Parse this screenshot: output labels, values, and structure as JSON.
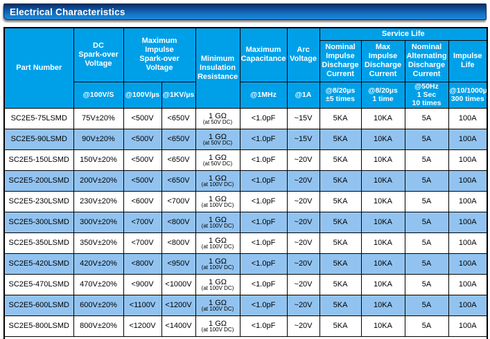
{
  "title": "Electrical Characteristics",
  "table": {
    "header": {
      "part_number": "Part Number",
      "dc_spark": "DC\nSpark-over\nVoltage",
      "max_impulse_spark": "Maximum\nImpulse\nSpark-over\nVoltage",
      "min_insulation": "Minimum\nInsulation\nResistance",
      "max_capacitance": "Maximum\nCapacitance",
      "arc_voltage": "Arc\nVoltage",
      "service_life": "Service Life",
      "sl_nominal_impulse": "Nominal\nImpulse\nDischarge\nCurrent",
      "sl_max_impulse": "Max\nImpulse\nDischarge\nCurrent",
      "sl_nominal_alternating": "Nominal\nAlternating\nDischarge\nCurrent",
      "sl_impulse_life": "Impulse\nLife",
      "sub_dc": "@100V/S",
      "sub_100v": "@100V/µs",
      "sub_1kv": "@1KV/µs",
      "sub_cap": "@1MHz",
      "sub_arc": "@1A",
      "sub_sl1": "@8/20µs\n±5 times",
      "sub_sl2": "@8/20µs\n1 time",
      "sub_sl3": "@50Hz\n1 Sec\n10 times",
      "sub_sl4": "@10/1000µs\n300 times"
    },
    "rows": [
      {
        "part": "SC2E5-75LSMD",
        "dc": "75V±20%",
        "v100": "<500V",
        "v1k": "<650V",
        "ins": "1 GΩ",
        "ins_note": "(at 50V DC)",
        "cap": "<1.0pF",
        "arc": "~15V",
        "nom": "5KA",
        "max": "10KA",
        "alt": "5A",
        "life": "100A"
      },
      {
        "part": "SC2E5-90LSMD",
        "dc": "90V±20%",
        "v100": "<500V",
        "v1k": "<650V",
        "ins": "1 GΩ",
        "ins_note": "(at 50V DC)",
        "cap": "<1.0pF",
        "arc": "~15V",
        "nom": "5KA",
        "max": "10KA",
        "alt": "5A",
        "life": "100A"
      },
      {
        "part": "SC2E5-150LSMD",
        "dc": "150V±20%",
        "v100": "<500V",
        "v1k": "<650V",
        "ins": "1 GΩ",
        "ins_note": "(at 50V DC)",
        "cap": "<1.0pF",
        "arc": "~20V",
        "nom": "5KA",
        "max": "10KA",
        "alt": "5A",
        "life": "100A"
      },
      {
        "part": "SC2E5-200LSMD",
        "dc": "200V±20%",
        "v100": "<500V",
        "v1k": "<650V",
        "ins": "1 GΩ",
        "ins_note": "(at 100V DC)",
        "cap": "<1.0pF",
        "arc": "~20V",
        "nom": "5KA",
        "max": "10KA",
        "alt": "5A",
        "life": "100A"
      },
      {
        "part": "SC2E5-230LSMD",
        "dc": "230V±20%",
        "v100": "<600V",
        "v1k": "<700V",
        "ins": "1 GΩ",
        "ins_note": "(at 100V DC)",
        "cap": "<1.0pF",
        "arc": "~20V",
        "nom": "5KA",
        "max": "10KA",
        "alt": "5A",
        "life": "100A"
      },
      {
        "part": "SC2E5-300LSMD",
        "dc": "300V±20%",
        "v100": "<700V",
        "v1k": "<800V",
        "ins": "1 GΩ",
        "ins_note": "(at 100V DC)",
        "cap": "<1.0pF",
        "arc": "~20V",
        "nom": "5KA",
        "max": "10KA",
        "alt": "5A",
        "life": "100A"
      },
      {
        "part": "SC2E5-350LSMD",
        "dc": "350V±20%",
        "v100": "<700V",
        "v1k": "<800V",
        "ins": "1 GΩ",
        "ins_note": "(at 100V DC)",
        "cap": "<1.0pF",
        "arc": "~20V",
        "nom": "5KA",
        "max": "10KA",
        "alt": "5A",
        "life": "100A"
      },
      {
        "part": "SC2E5-420LSMD",
        "dc": "420V±20%",
        "v100": "<800V",
        "v1k": "<950V",
        "ins": "1 GΩ",
        "ins_note": "(at 100V DC)",
        "cap": "<1.0pF",
        "arc": "~20V",
        "nom": "5KA",
        "max": "10KA",
        "alt": "5A",
        "life": "100A"
      },
      {
        "part": "SC2E5-470LSMD",
        "dc": "470V±20%",
        "v100": "<900V",
        "v1k": "<1000V",
        "ins": "1 GΩ",
        "ins_note": "(at 100V DC)",
        "cap": "<1.0pF",
        "arc": "~20V",
        "nom": "5KA",
        "max": "10KA",
        "alt": "5A",
        "life": "100A"
      },
      {
        "part": "SC2E5-600LSMD",
        "dc": "600V±20%",
        "v100": "<1100V",
        "v1k": "<1200V",
        "ins": "1 GΩ",
        "ins_note": "(at 100V DC)",
        "cap": "<1.0pF",
        "arc": "~20V",
        "nom": "5KA",
        "max": "10KA",
        "alt": "5A",
        "life": "100A"
      },
      {
        "part": "SC2E5-800LSMD",
        "dc": "800V±20%",
        "v100": "<1200V",
        "v1k": "<1400V",
        "ins": "1 GΩ",
        "ins_note": "(at 100V DC)",
        "cap": "<1.0pF",
        "arc": "~20V",
        "nom": "5KA",
        "max": "10KA",
        "alt": "5A",
        "life": "100A"
      }
    ],
    "colors": {
      "header_bg": "#00A0E9",
      "stripe_bg": "#92C3F0",
      "title_bar_top": "#0a2f62",
      "title_bar_bottom": "#1e8adc",
      "border": "#000000"
    }
  }
}
